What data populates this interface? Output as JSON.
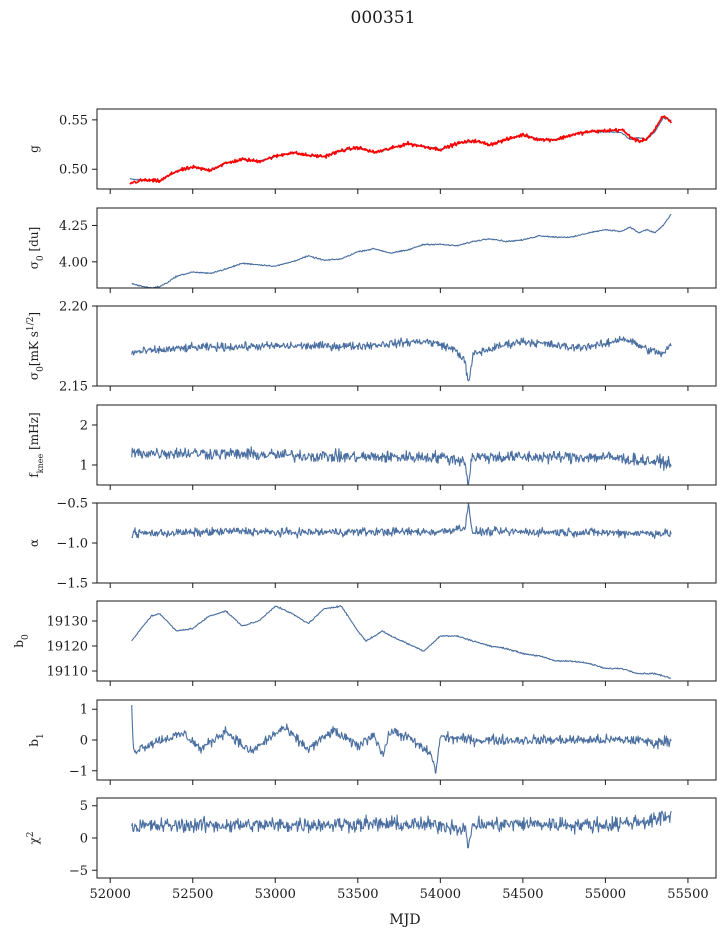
{
  "figure": {
    "title": "000351",
    "xlabel": "MJD"
  },
  "chart_data": [
    {
      "type": "line",
      "ylabel": "g",
      "ylim": [
        0.48,
        0.561
      ],
      "yticks": [
        0.5,
        0.55
      ],
      "ytick_labels": [
        "0.50",
        "0.55"
      ],
      "xlim": [
        51920,
        55670
      ],
      "series": [
        {
          "color": "#4a6fa0",
          "noise": 0.0006,
          "x": [
            52120,
            52200,
            52300,
            52400,
            52500,
            52600,
            52700,
            52800,
            52900,
            53000,
            53100,
            53200,
            53300,
            53400,
            53500,
            53600,
            53700,
            53800,
            53900,
            54000,
            54100,
            54200,
            54300,
            54400,
            54500,
            54600,
            54700,
            54800,
            54900,
            55000,
            55100,
            55150,
            55200,
            55250,
            55300,
            55350,
            55400
          ],
          "y": [
            0.49,
            0.489,
            0.488,
            0.498,
            0.502,
            0.499,
            0.506,
            0.51,
            0.508,
            0.513,
            0.517,
            0.514,
            0.513,
            0.519,
            0.522,
            0.517,
            0.521,
            0.526,
            0.523,
            0.52,
            0.526,
            0.529,
            0.525,
            0.53,
            0.535,
            0.53,
            0.53,
            0.535,
            0.538,
            0.538,
            0.537,
            0.53,
            0.532,
            0.53,
            0.538,
            0.552,
            0.549
          ]
        },
        {
          "color": "#ff0000",
          "noise": 0.0015,
          "x": [
            52120,
            52200,
            52300,
            52400,
            52500,
            52600,
            52700,
            52800,
            52900,
            53000,
            53100,
            53200,
            53300,
            53400,
            53500,
            53600,
            53700,
            53800,
            53900,
            54000,
            54100,
            54200,
            54300,
            54400,
            54500,
            54600,
            54700,
            54800,
            54900,
            55000,
            55100,
            55150,
            55200,
            55250,
            55300,
            55350,
            55400
          ],
          "y": [
            0.486,
            0.489,
            0.488,
            0.498,
            0.502,
            0.499,
            0.506,
            0.51,
            0.508,
            0.513,
            0.517,
            0.514,
            0.513,
            0.519,
            0.522,
            0.517,
            0.521,
            0.526,
            0.523,
            0.52,
            0.526,
            0.529,
            0.525,
            0.53,
            0.535,
            0.53,
            0.53,
            0.535,
            0.538,
            0.539,
            0.54,
            0.533,
            0.528,
            0.531,
            0.54,
            0.554,
            0.548
          ]
        }
      ]
    },
    {
      "type": "line",
      "ylabel": "σ₀ [du]",
      "ylim": [
        3.82,
        4.37
      ],
      "yticks": [
        4.0,
        4.25
      ],
      "ytick_labels": [
        "4.00",
        "4.25"
      ],
      "xlim": [
        51920,
        55670
      ],
      "series": [
        {
          "color": "#4a6fa0",
          "noise": 0.004,
          "x": [
            52130,
            52200,
            52250,
            52300,
            52350,
            52400,
            52500,
            52600,
            52700,
            52800,
            52900,
            53000,
            53100,
            53200,
            53300,
            53400,
            53500,
            53600,
            53700,
            53800,
            53900,
            54000,
            54100,
            54200,
            54300,
            54400,
            54500,
            54600,
            54700,
            54800,
            54900,
            55000,
            55100,
            55150,
            55200,
            55250,
            55300,
            55350,
            55400
          ],
          "y": [
            3.85,
            3.83,
            3.82,
            3.83,
            3.86,
            3.9,
            3.93,
            3.92,
            3.95,
            3.99,
            3.98,
            3.97,
            4.0,
            4.04,
            4.01,
            4.02,
            4.07,
            4.09,
            4.06,
            4.08,
            4.12,
            4.12,
            4.11,
            4.14,
            4.16,
            4.14,
            4.15,
            4.18,
            4.17,
            4.17,
            4.2,
            4.22,
            4.21,
            4.24,
            4.2,
            4.22,
            4.2,
            4.25,
            4.33
          ]
        }
      ]
    },
    {
      "type": "line",
      "ylabel": "σ₀[mK s^1/2]",
      "ylim": [
        2.15,
        2.2
      ],
      "yticks": [
        2.15,
        2.2
      ],
      "ytick_labels": [
        "2.15",
        "2.20"
      ],
      "xlim": [
        51920,
        55670
      ],
      "series": [
        {
          "color": "#4a6fa0",
          "noise": 0.0022,
          "x": [
            52130,
            52500,
            53000,
            53500,
            53900,
            54000,
            54100,
            54150,
            54170,
            54200,
            54400,
            54500,
            54800,
            55000,
            55100,
            55150,
            55250,
            55350,
            55400
          ],
          "y": [
            2.171,
            2.174,
            2.175,
            2.175,
            2.178,
            2.176,
            2.172,
            2.165,
            2.151,
            2.17,
            2.176,
            2.178,
            2.174,
            2.176,
            2.18,
            2.178,
            2.173,
            2.17,
            2.176
          ]
        }
      ]
    },
    {
      "type": "line",
      "ylabel": "f_knee [mHz]",
      "ylim": [
        0.5,
        2.5
      ],
      "yticks": [
        1,
        2
      ],
      "ytick_labels": [
        "1",
        "2"
      ],
      "xlim": [
        51920,
        55670
      ],
      "series": [
        {
          "color": "#4a6fa0",
          "noise": 0.13,
          "x": [
            52130,
            52500,
            53000,
            53500,
            54000,
            54150,
            54170,
            54190,
            54500,
            55000,
            55390,
            55400
          ],
          "y": [
            1.3,
            1.3,
            1.25,
            1.2,
            1.2,
            1.1,
            0.45,
            1.2,
            1.2,
            1.2,
            1.05,
            0.9
          ]
        }
      ]
    },
    {
      "type": "line",
      "ylabel": "α",
      "ylim": [
        -1.5,
        -0.5
      ],
      "yticks": [
        -1.5,
        -1.0,
        -0.5
      ],
      "ytick_labels": [
        "−1.5",
        "−1.0",
        "−0.5"
      ],
      "xlim": [
        51920,
        55670
      ],
      "series": [
        {
          "color": "#4a6fa0",
          "noise": 0.045,
          "x": [
            52130,
            52500,
            52800,
            53000,
            53500,
            54000,
            54150,
            54170,
            54190,
            54500,
            55000,
            55400
          ],
          "y": [
            -0.88,
            -0.87,
            -0.85,
            -0.87,
            -0.86,
            -0.86,
            -0.8,
            -0.5,
            -0.86,
            -0.86,
            -0.87,
            -0.88
          ]
        }
      ]
    },
    {
      "type": "line",
      "ylabel": "b₀",
      "ylim": [
        19106,
        19138
      ],
      "yticks": [
        19110,
        19120,
        19130
      ],
      "ytick_labels": [
        "19110",
        "19120",
        "19130"
      ],
      "xlim": [
        51920,
        55670
      ],
      "series": [
        {
          "color": "#4a6fa0",
          "noise": 0.25,
          "x": [
            52130,
            52200,
            52250,
            52300,
            52400,
            52500,
            52600,
            52700,
            52800,
            52900,
            53000,
            53100,
            53200,
            53300,
            53400,
            53500,
            53550,
            53600,
            53650,
            53700,
            53800,
            53900,
            53950,
            54000,
            54100,
            54200,
            54300,
            54400,
            54500,
            54600,
            54700,
            54800,
            54900,
            55000,
            55100,
            55200,
            55300,
            55350,
            55400
          ],
          "y": [
            19122,
            19128,
            19132,
            19133,
            19126,
            19127,
            19132,
            19134,
            19128,
            19130,
            19136,
            19133,
            19129,
            19135,
            19136,
            19126,
            19122,
            19124,
            19126,
            19124,
            19121,
            19118,
            19121,
            19124,
            19124,
            19122,
            19120,
            19119,
            19117,
            19116,
            19114,
            19114,
            19113,
            19111,
            19111,
            19109,
            19109,
            19108,
            19107
          ]
        }
      ]
    },
    {
      "type": "line",
      "ylabel": "b₁",
      "ylim": [
        -1.3,
        1.3
      ],
      "yticks": [
        -1,
        0,
        1
      ],
      "ytick_labels": [
        "−1",
        "0",
        "1"
      ],
      "xlim": [
        51920,
        55670
      ],
      "series": [
        {
          "color": "#4a6fa0",
          "noise": 0.14,
          "x": [
            52130,
            52140,
            52160,
            52300,
            52450,
            52550,
            52700,
            52850,
            52950,
            53050,
            53200,
            53350,
            53500,
            53600,
            53650,
            53700,
            53800,
            53950,
            53970,
            54000,
            54200,
            54500,
            54800,
            55000,
            55200,
            55300,
            55400
          ],
          "y": [
            1.2,
            -0.4,
            -0.3,
            0.0,
            0.2,
            -0.3,
            0.3,
            -0.4,
            0.0,
            0.4,
            -0.3,
            0.3,
            -0.2,
            0.2,
            -0.5,
            0.3,
            0.1,
            -0.5,
            -1.1,
            0.1,
            0.0,
            0.0,
            0.0,
            0.0,
            0.0,
            -0.1,
            0.0
          ]
        }
      ]
    },
    {
      "type": "line",
      "ylabel": "χ²",
      "ylim": [
        -6.2,
        6.2
      ],
      "yticks": [
        -5,
        0,
        5
      ],
      "ytick_labels": [
        "−5",
        "0",
        "5"
      ],
      "xlim": [
        51920,
        55670
      ],
      "xticks": [
        52000,
        52500,
        53000,
        53500,
        54000,
        54500,
        55000,
        55500
      ],
      "xtick_labels": [
        "52000",
        "52500",
        "53000",
        "53500",
        "54000",
        "54500",
        "55000",
        "55500"
      ],
      "series": [
        {
          "color": "#4a6fa0",
          "noise": 1.0,
          "x": [
            52130,
            52500,
            53000,
            53500,
            54000,
            54150,
            54170,
            54190,
            54500,
            55000,
            55300,
            55400
          ],
          "y": [
            1.8,
            2.0,
            2.0,
            2.2,
            2.0,
            1.5,
            -2.0,
            2.0,
            2.2,
            2.0,
            2.8,
            3.5
          ]
        }
      ]
    }
  ]
}
